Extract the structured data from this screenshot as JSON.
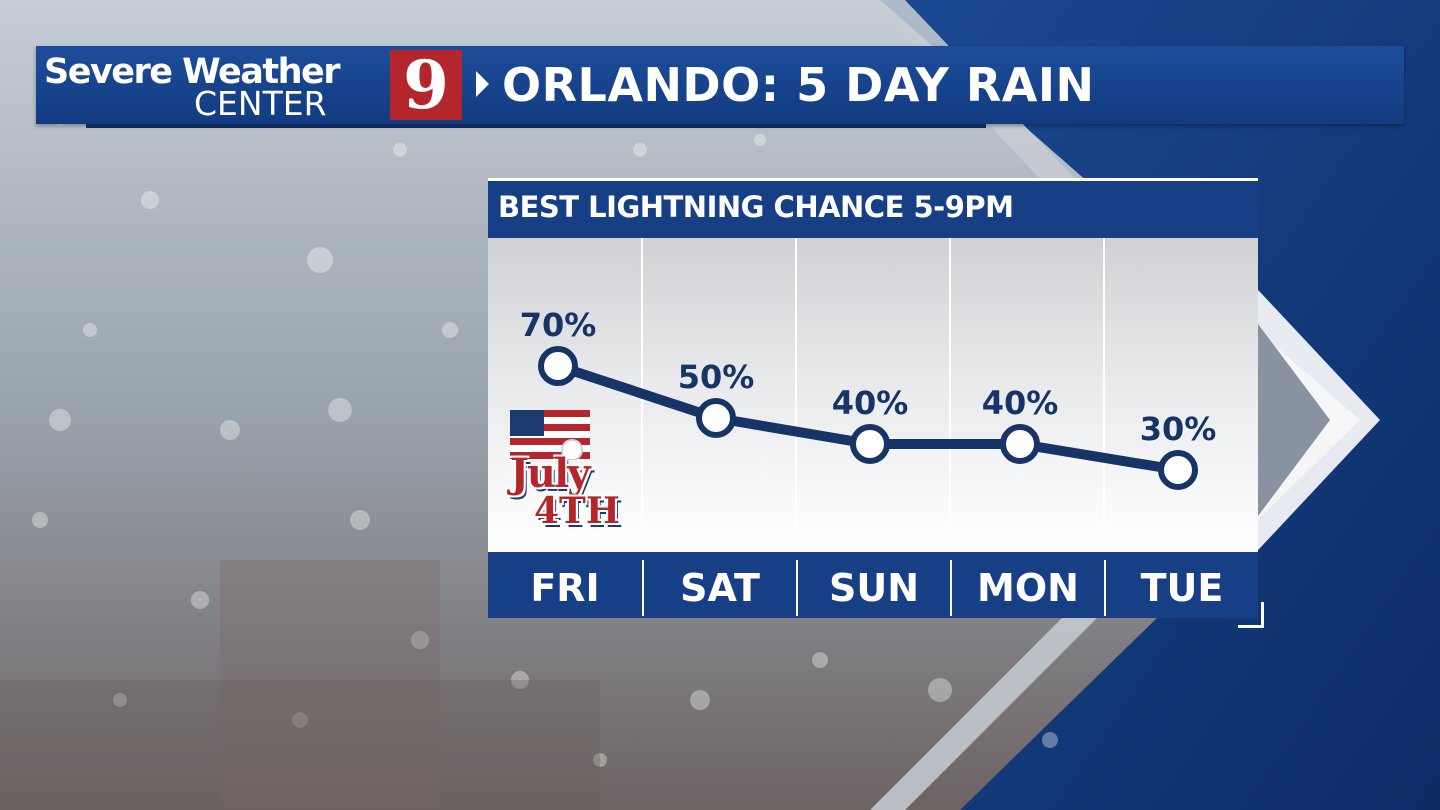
{
  "header": {
    "brand_line1": "Severe Weather",
    "brand_line2": "CENTER",
    "channel_number": "9",
    "title": "ORLANDO: 5 DAY RAIN"
  },
  "colors": {
    "navy": "#173f86",
    "line": "#163466",
    "logo_red": "#b3262b",
    "sky_blue": "#1d4d9a"
  },
  "badge": {
    "line1": "July",
    "line2": "4TH",
    "icon": "american-flag-icon"
  },
  "chart_data": {
    "type": "line",
    "title": "BEST LIGHTNING CHANCE 5-9PM",
    "categories": [
      "FRI",
      "SAT",
      "SUN",
      "MON",
      "TUE"
    ],
    "values": [
      70,
      50,
      40,
      40,
      30
    ],
    "labels": [
      "70%",
      "50%",
      "40%",
      "40%",
      "30%"
    ],
    "unit": "%",
    "ylim": [
      0,
      100
    ],
    "grid": "vertical column dividers"
  }
}
